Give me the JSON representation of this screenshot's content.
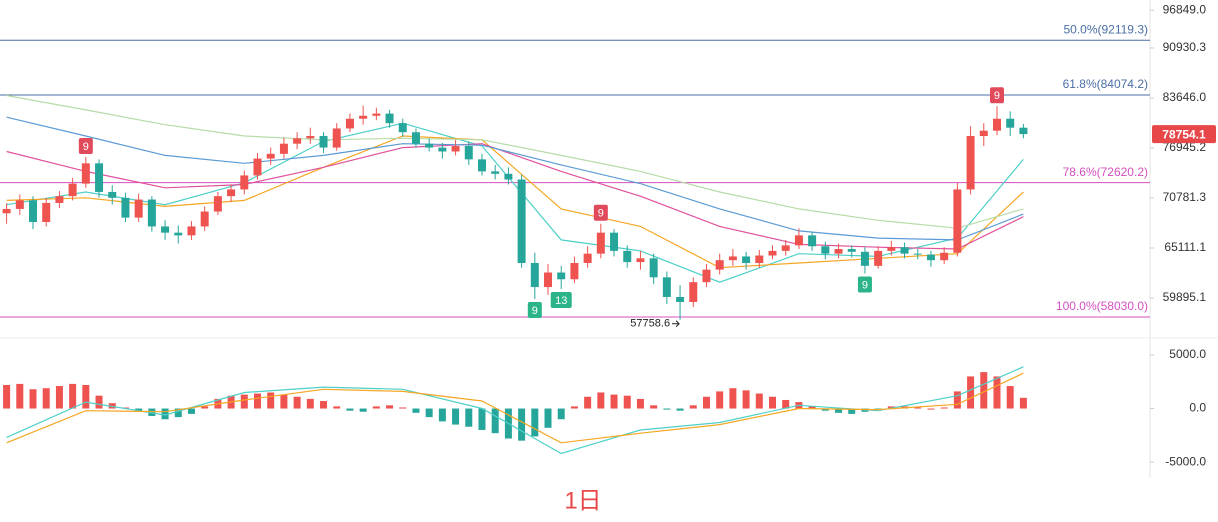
{
  "chart_data": [
    {
      "type": "candlestick",
      "log": true,
      "ylim": [
        56307,
        98519
      ],
      "yticks": [
        {
          "value": 96849,
          "label": "96849.0"
        },
        90930.3,
        {
          "value": 83646,
          "label": "83646.0"
        },
        76945.2,
        70781.3,
        65111.1,
        59895.1
      ],
      "up_color": "#ef5350",
      "down_color": "#26a69a",
      "candles": [
        [
          69000,
          70200,
          67800,
          69500
        ],
        [
          69500,
          71200,
          68800,
          70500
        ],
        [
          70500,
          71000,
          67200,
          68000
        ],
        [
          68000,
          70800,
          67500,
          70200
        ],
        [
          70200,
          71600,
          69600,
          71000
        ],
        [
          71000,
          73200,
          70500,
          72500
        ],
        [
          72500,
          75800,
          72000,
          75000
        ],
        [
          75000,
          75500,
          70800,
          71500
        ],
        [
          71500,
          72300,
          70000,
          70800
        ],
        [
          70800,
          71400,
          68000,
          68500
        ],
        [
          68500,
          71300,
          68000,
          70600
        ],
        [
          70600,
          71000,
          66900,
          67500
        ],
        [
          67500,
          68200,
          66000,
          66800
        ],
        [
          66800,
          67600,
          65600,
          66500
        ],
        [
          66500,
          68100,
          66000,
          67500
        ],
        [
          67500,
          69800,
          67000,
          69200
        ],
        [
          69200,
          71500,
          68800,
          71000
        ],
        [
          71000,
          72400,
          70300,
          71800
        ],
        [
          71800,
          74100,
          71200,
          73500
        ],
        [
          73500,
          76300,
          73000,
          75600
        ],
        [
          75600,
          77000,
          74800,
          76200
        ],
        [
          76200,
          78300,
          75600,
          77500
        ],
        [
          77500,
          79000,
          76800,
          78200
        ],
        [
          78200,
          79600,
          77500,
          78500
        ],
        [
          78500,
          79000,
          76300,
          77000
        ],
        [
          77000,
          80200,
          76600,
          79500
        ],
        [
          79500,
          81500,
          79000,
          80800
        ],
        [
          80800,
          82600,
          80000,
          81200
        ],
        [
          81200,
          82300,
          80600,
          81500
        ],
        [
          81500,
          82000,
          79600,
          80200
        ],
        [
          80200,
          80800,
          78400,
          79000
        ],
        [
          79000,
          79500,
          77000,
          77500
        ],
        [
          77500,
          78200,
          76500,
          77000
        ],
        [
          77000,
          77600,
          75600,
          76500
        ],
        [
          76500,
          78000,
          76000,
          77200
        ],
        [
          77200,
          77800,
          74800,
          75500
        ],
        [
          75500,
          76200,
          73500,
          74000
        ],
        [
          74000,
          74800,
          73000,
          73700
        ],
        [
          73700,
          74500,
          72400,
          73000
        ],
        [
          73000,
          73600,
          63000,
          63500
        ],
        [
          63500,
          64600,
          59800,
          61000
        ],
        [
          61000,
          63400,
          60200,
          62500
        ],
        [
          62500,
          63200,
          60800,
          61800
        ],
        [
          61800,
          64200,
          61400,
          63500
        ],
        [
          63500,
          65300,
          63000,
          64500
        ],
        [
          64500,
          67800,
          64000,
          66800
        ],
        [
          66800,
          67200,
          64200,
          64800
        ],
        [
          64800,
          65400,
          63000,
          63600
        ],
        [
          63600,
          64800,
          62800,
          64000
        ],
        [
          64000,
          64500,
          61300,
          62000
        ],
        [
          62000,
          62600,
          59300,
          60000
        ],
        [
          60000,
          61200,
          57758.6,
          59500
        ],
        [
          59500,
          62000,
          59000,
          61500
        ],
        [
          61500,
          63400,
          61000,
          62800
        ],
        [
          62800,
          64500,
          62300,
          63800
        ],
        [
          63800,
          65000,
          63200,
          64200
        ],
        [
          64200,
          64700,
          62800,
          63500
        ],
        [
          63500,
          64900,
          63000,
          64300
        ],
        [
          64300,
          65400,
          63900,
          64800
        ],
        [
          64800,
          66000,
          64300,
          65400
        ],
        [
          65400,
          67300,
          65000,
          66500
        ],
        [
          66500,
          66900,
          64800,
          65300
        ],
        [
          65300,
          65800,
          63900,
          64500
        ],
        [
          64500,
          65600,
          64000,
          65000
        ],
        [
          65000,
          65400,
          64100,
          64700
        ],
        [
          64700,
          65200,
          62400,
          63200
        ],
        [
          63200,
          65300,
          62900,
          64800
        ],
        [
          64800,
          65900,
          64300,
          65200
        ],
        [
          65200,
          65700,
          64000,
          64500
        ],
        [
          64500,
          65000,
          63900,
          64400
        ],
        [
          64400,
          64800,
          63100,
          63800
        ],
        [
          63800,
          65200,
          63400,
          64600
        ],
        [
          64600,
          72600,
          64200,
          71800
        ],
        [
          71800,
          79800,
          71200,
          78500
        ],
        [
          78500,
          80200,
          77200,
          79200
        ],
        [
          79200,
          82500,
          78600,
          80800
        ],
        [
          80800,
          81800,
          78500,
          79600
        ],
        [
          79600,
          80100,
          78200,
          78754.1
        ]
      ],
      "ma_x": [
        0,
        6,
        12,
        18,
        24,
        30,
        36,
        42,
        48,
        54,
        60,
        66,
        72,
        77
      ],
      "ma_lines": [
        {
          "color": "#4dd0c8",
          "values": [
            70000,
            71500,
            70000,
            72600,
            77800,
            80200,
            77200,
            66000,
            64800,
            61500,
            64500,
            64200,
            66200,
            75500
          ]
        },
        {
          "color": "#f5a623",
          "values": [
            70500,
            70800,
            69800,
            70500,
            74500,
            78500,
            78000,
            69500,
            67500,
            63000,
            63500,
            64000,
            64500,
            71500
          ]
        },
        {
          "color": "#e0529c",
          "values": [
            76500,
            74000,
            72000,
            72400,
            74500,
            77000,
            77500,
            74000,
            71000,
            67500,
            65500,
            65200,
            65000,
            68600
          ]
        },
        {
          "color": "#5b9bd5",
          "values": [
            81000,
            78500,
            76000,
            75000,
            76000,
            77500,
            77300,
            74800,
            72500,
            69500,
            67000,
            66200,
            66000,
            68900
          ]
        },
        {
          "color": "#b7dca8",
          "values": [
            84000,
            82000,
            80000,
            78500,
            78000,
            78200,
            78000,
            76000,
            74000,
            71500,
            69500,
            68200,
            67300,
            69500
          ]
        }
      ],
      "fib_levels": [
        {
          "value": 92119.3,
          "label": "50.0%(92119.3)",
          "color": "#4a6fa5"
        },
        {
          "value": 84074.2,
          "label": "61.8%(84074.2)",
          "color": "#4a6fa5"
        },
        {
          "value": 72620.2,
          "label": "78.6%(72620.2)",
          "color": "#d44fc0"
        },
        {
          "value": 58030,
          "label": "100.0%(58030.0)",
          "color": "#d44fc0"
        }
      ],
      "markers": [
        {
          "label": "9",
          "candle": 6,
          "side": "high"
        },
        {
          "label": "9",
          "candle": 45,
          "side": "high"
        },
        {
          "label": "9",
          "candle": 75,
          "side": "high"
        },
        {
          "label": "9",
          "candle": 40,
          "side": "low"
        },
        {
          "label": "13",
          "candle": 42,
          "side": "low"
        },
        {
          "label": "9",
          "candle": 65,
          "side": "low"
        }
      ],
      "low_mark": 57758.6,
      "low_candle": 51,
      "last_price": 78754.1
    },
    {
      "type": "macd",
      "ylim": [
        -6300,
        6400
      ],
      "yticks": [
        {
          "value": 5000,
          "label": "5000.0"
        },
        {
          "value": 0,
          "label": "0.0"
        },
        {
          "value": -5000,
          "label": "-5000.0"
        }
      ],
      "up_color": "#ef5350",
      "down_color": "#26a69a",
      "histogram": [
        2200,
        2300,
        1800,
        1900,
        2100,
        2300,
        2200,
        1200,
        500,
        100,
        -300,
        -700,
        -1000,
        -800,
        -500,
        200,
        900,
        1200,
        1300,
        1400,
        1500,
        1300,
        1100,
        900,
        700,
        200,
        -200,
        -300,
        200,
        300,
        100,
        -400,
        -800,
        -1200,
        -1500,
        -1700,
        -2000,
        -2300,
        -2800,
        -3000,
        -2600,
        -1800,
        -1000,
        200,
        1100,
        1500,
        1300,
        1200,
        900,
        300,
        -100,
        -200,
        300,
        1100,
        1600,
        1900,
        1700,
        1400,
        1100,
        800,
        600,
        200,
        -200,
        -400,
        -500,
        -300,
        -100,
        200,
        200,
        100,
        0,
        100,
        1600,
        3000,
        3400,
        3000,
        2100,
        1000
      ],
      "x": [
        0,
        6,
        12,
        18,
        24,
        30,
        36,
        42,
        48,
        54,
        60,
        66,
        72,
        77
      ],
      "lines": [
        {
          "color": "#4dd0c8",
          "values": [
            -2700,
            600,
            -600,
            1500,
            2000,
            1800,
            0,
            -4200,
            -2000,
            -1300,
            300,
            -200,
            1200,
            3900
          ]
        },
        {
          "color": "#f5a623",
          "values": [
            -3200,
            -200,
            -300,
            800,
            1800,
            1600,
            700,
            -3200,
            -2300,
            -1500,
            0,
            -100,
            400,
            3300
          ]
        }
      ]
    }
  ],
  "interval": "1日"
}
